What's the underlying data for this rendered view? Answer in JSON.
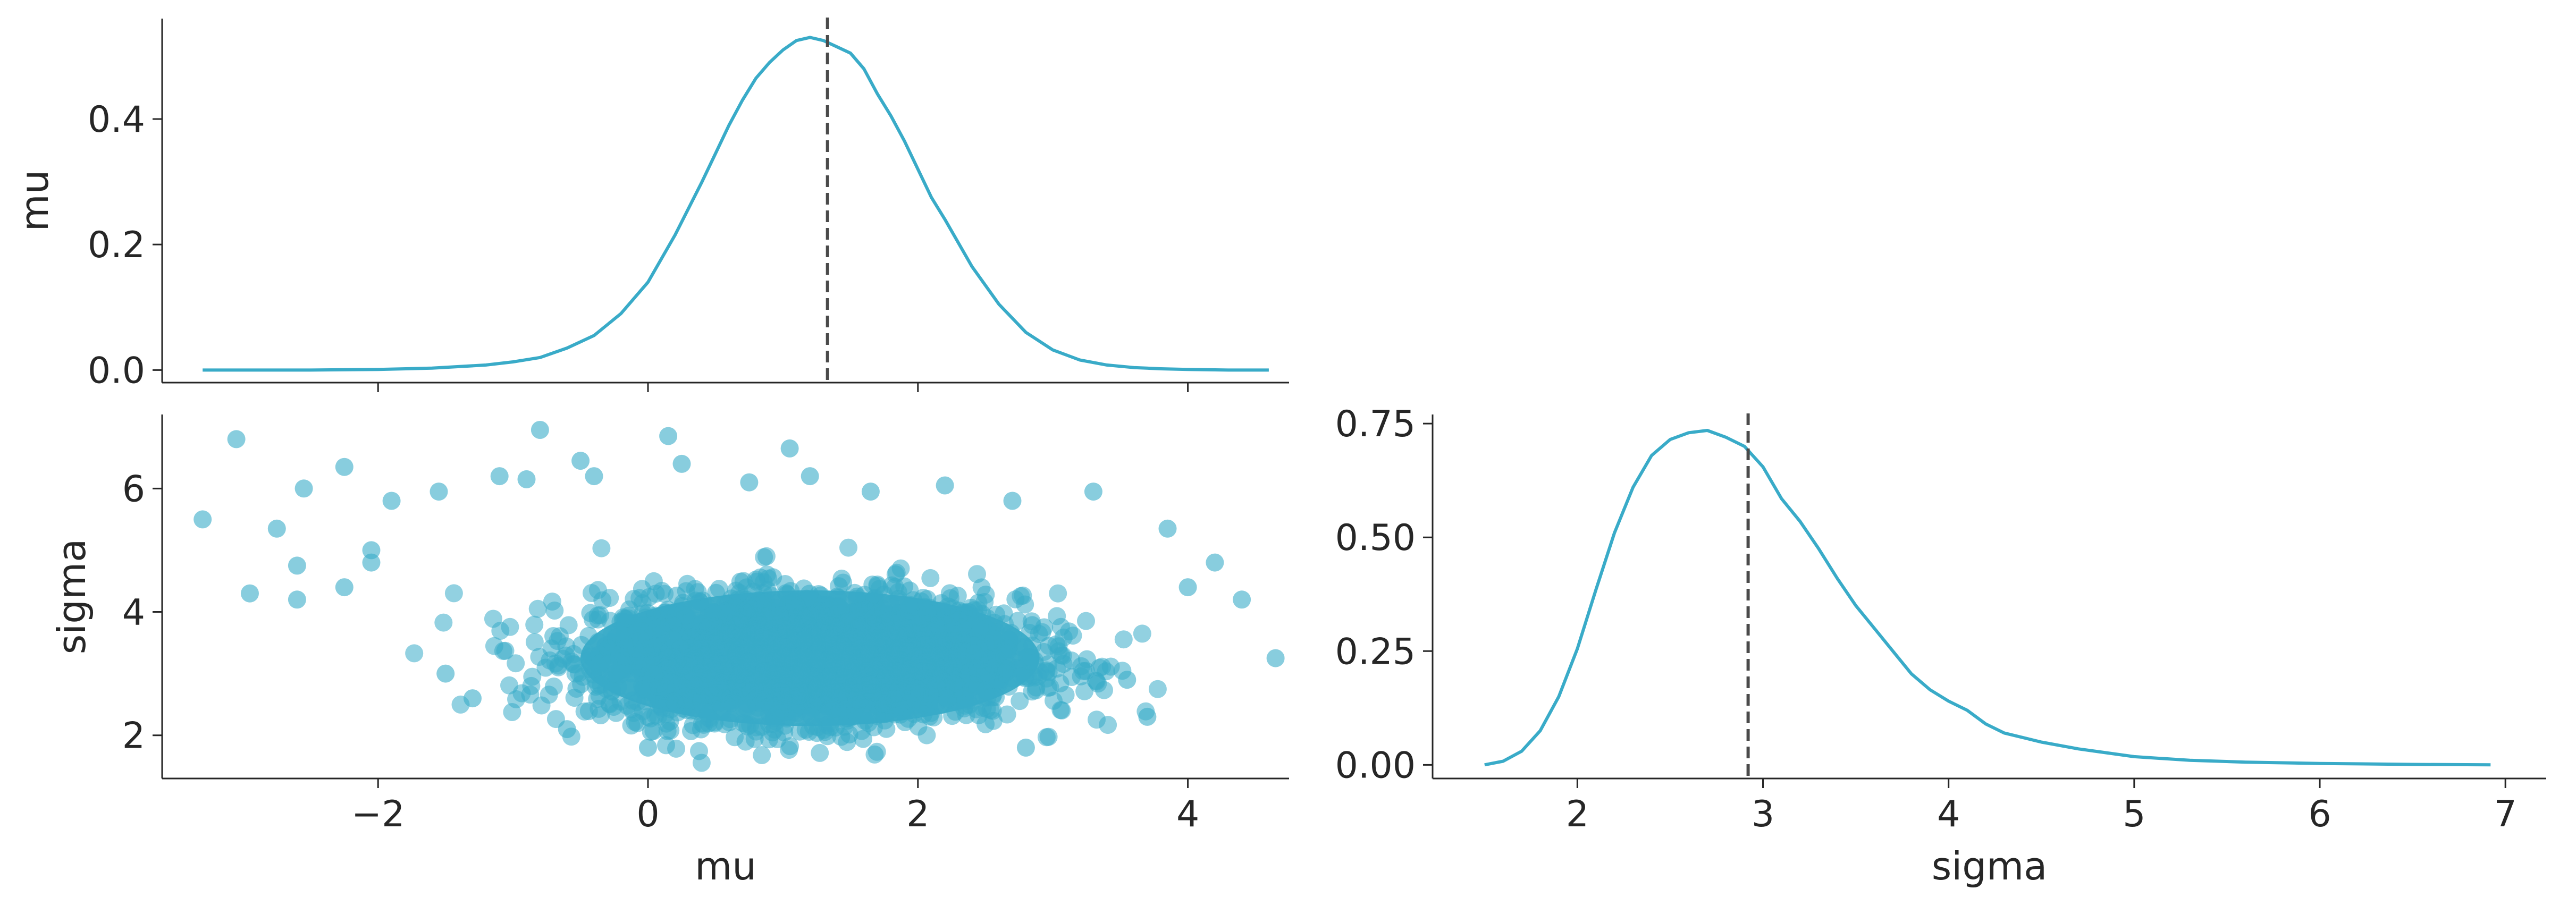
{
  "colors": {
    "series": "#39abc8",
    "point_median": "#4a4a4a",
    "axis": "#262626"
  },
  "chart_data": [
    {
      "id": "mu-marginal",
      "type": "line",
      "panel": "top-left",
      "title": "",
      "xlabel": "",
      "ylabel": "mu",
      "xlim": [
        -3.6,
        4.75
      ],
      "ylim": [
        -0.02,
        0.56
      ],
      "xticks": [
        -2,
        0,
        2,
        4
      ],
      "xtick_labels_visible": false,
      "yticks": [
        0.0,
        0.2,
        0.4
      ],
      "ytick_labels": [
        "0.0",
        "0.2",
        "0.4"
      ],
      "point_estimate": 1.33,
      "series": [
        {
          "x": [
            -3.3,
            -2.5,
            -2.0,
            -1.6,
            -1.2,
            -1.0,
            -0.8,
            -0.6,
            -0.4,
            -0.2,
            0.0,
            0.2,
            0.4,
            0.5,
            0.6,
            0.7,
            0.8,
            0.9,
            1.0,
            1.1,
            1.2,
            1.3,
            1.4,
            1.5,
            1.6,
            1.7,
            1.8,
            1.9,
            2.0,
            2.1,
            2.2,
            2.4,
            2.6,
            2.8,
            3.0,
            3.2,
            3.4,
            3.6,
            3.8,
            4.0,
            4.3,
            4.6
          ],
          "y": [
            0.0,
            0.0,
            0.001,
            0.003,
            0.008,
            0.013,
            0.02,
            0.035,
            0.055,
            0.09,
            0.14,
            0.215,
            0.3,
            0.345,
            0.39,
            0.43,
            0.465,
            0.49,
            0.51,
            0.525,
            0.53,
            0.525,
            0.515,
            0.505,
            0.48,
            0.44,
            0.405,
            0.365,
            0.32,
            0.275,
            0.24,
            0.165,
            0.105,
            0.06,
            0.032,
            0.016,
            0.008,
            0.004,
            0.002,
            0.001,
            0.0,
            0.0
          ]
        }
      ]
    },
    {
      "id": "joint-scatter",
      "type": "scatter",
      "panel": "bottom-left",
      "title": "",
      "xlabel": "mu",
      "ylabel": "sigma",
      "xlim": [
        -3.6,
        4.75
      ],
      "ylim": [
        1.3,
        7.2
      ],
      "xticks": [
        -2,
        0,
        2,
        4
      ],
      "xtick_labels": [
        "−2",
        "0",
        "2",
        "4"
      ],
      "yticks": [
        2,
        4,
        6
      ],
      "ytick_labels": [
        "2",
        "4",
        "6"
      ],
      "center": {
        "mu": 1.2,
        "sigma": 3.25
      },
      "outliers": [
        [
          -3.3,
          5.5
        ],
        [
          -3.05,
          6.8
        ],
        [
          -2.95,
          4.3
        ],
        [
          -2.75,
          5.35
        ],
        [
          -2.6,
          4.75
        ],
        [
          -2.6,
          4.2
        ],
        [
          -2.55,
          6.0
        ],
        [
          -2.25,
          6.35
        ],
        [
          -2.25,
          4.4
        ],
        [
          -2.05,
          5.0
        ],
        [
          -2.05,
          4.8
        ],
        [
          -1.9,
          5.8
        ],
        [
          -1.55,
          5.95
        ],
        [
          -1.1,
          6.2
        ],
        [
          -0.9,
          6.15
        ],
        [
          -0.8,
          6.95
        ],
        [
          -0.5,
          6.45
        ],
        [
          -0.4,
          6.2
        ],
        [
          0.15,
          6.85
        ],
        [
          0.25,
          6.4
        ],
        [
          0.75,
          6.1
        ],
        [
          1.05,
          6.65
        ],
        [
          1.2,
          6.2
        ],
        [
          1.65,
          5.95
        ],
        [
          2.2,
          6.05
        ],
        [
          2.7,
          5.8
        ],
        [
          3.3,
          5.95
        ],
        [
          3.85,
          5.35
        ],
        [
          4.0,
          4.4
        ],
        [
          4.2,
          4.8
        ],
        [
          4.4,
          4.2
        ],
        [
          4.65,
          3.25
        ],
        [
          -1.5,
          3.0
        ],
        [
          -1.3,
          2.6
        ],
        [
          3.7,
          2.3
        ],
        [
          3.55,
          2.9
        ],
        [
          -0.6,
          2.1
        ],
        [
          2.8,
          1.8
        ],
        [
          0.0,
          1.8
        ]
      ]
    },
    {
      "id": "sigma-marginal",
      "type": "line",
      "panel": "bottom-right",
      "title": "",
      "xlabel": "sigma",
      "ylabel": "",
      "xlim": [
        1.22,
        7.22
      ],
      "ylim": [
        -0.03,
        0.77
      ],
      "xticks": [
        2,
        3,
        4,
        5,
        6,
        7
      ],
      "xtick_labels": [
        "2",
        "3",
        "4",
        "5",
        "6",
        "7"
      ],
      "yticks": [
        0.0,
        0.25,
        0.5,
        0.75
      ],
      "ytick_labels": [
        "0.00",
        "0.25",
        "0.50",
        "0.75"
      ],
      "point_estimate": 2.92,
      "series": [
        {
          "x": [
            1.5,
            1.6,
            1.7,
            1.8,
            1.9,
            2.0,
            2.1,
            2.2,
            2.3,
            2.4,
            2.5,
            2.6,
            2.7,
            2.8,
            2.9,
            3.0,
            3.1,
            3.2,
            3.3,
            3.4,
            3.5,
            3.6,
            3.7,
            3.8,
            3.9,
            4.0,
            4.1,
            4.2,
            4.3,
            4.5,
            4.7,
            5.0,
            5.3,
            5.6,
            6.0,
            6.5,
            6.92
          ],
          "y": [
            0.0,
            0.008,
            0.03,
            0.075,
            0.15,
            0.255,
            0.385,
            0.51,
            0.61,
            0.68,
            0.715,
            0.73,
            0.735,
            0.72,
            0.7,
            0.655,
            0.585,
            0.535,
            0.475,
            0.41,
            0.35,
            0.3,
            0.25,
            0.2,
            0.165,
            0.14,
            0.12,
            0.09,
            0.07,
            0.05,
            0.035,
            0.018,
            0.01,
            0.006,
            0.003,
            0.001,
            0.0
          ]
        }
      ]
    }
  ]
}
